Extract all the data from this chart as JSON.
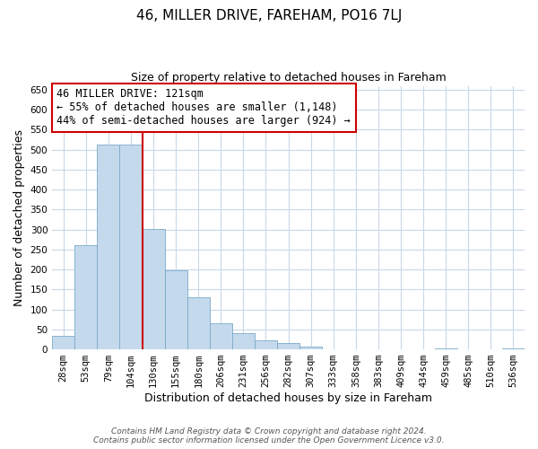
{
  "title": "46, MILLER DRIVE, FAREHAM, PO16 7LJ",
  "subtitle": "Size of property relative to detached houses in Fareham",
  "xlabel": "Distribution of detached houses by size in Fareham",
  "ylabel": "Number of detached properties",
  "bar_labels": [
    "28sqm",
    "53sqm",
    "79sqm",
    "104sqm",
    "130sqm",
    "155sqm",
    "180sqm",
    "206sqm",
    "231sqm",
    "256sqm",
    "282sqm",
    "307sqm",
    "333sqm",
    "358sqm",
    "383sqm",
    "409sqm",
    "434sqm",
    "459sqm",
    "485sqm",
    "510sqm",
    "536sqm"
  ],
  "bar_values": [
    33,
    260,
    513,
    513,
    302,
    197,
    130,
    65,
    40,
    23,
    15,
    7,
    0,
    0,
    0,
    0,
    0,
    2,
    0,
    0,
    2
  ],
  "bar_color": "#c5d9ed",
  "bar_edge_color": "#7aaac8",
  "vline_index": 4,
  "vline_color": "#cc0000",
  "annotation_line1": "46 MILLER DRIVE: 121sqm",
  "annotation_line2": "← 55% of detached houses are smaller (1,148)",
  "annotation_line3": "44% of semi-detached houses are larger (924) →",
  "annotation_box_edge_color": "#cc0000",
  "ylim": [
    0,
    660
  ],
  "yticks": [
    0,
    50,
    100,
    150,
    200,
    250,
    300,
    350,
    400,
    450,
    500,
    550,
    600,
    650
  ],
  "footer_line1": "Contains HM Land Registry data © Crown copyright and database right 2024.",
  "footer_line2": "Contains public sector information licensed under the Open Government Licence v3.0.",
  "background_color": "#ffffff",
  "grid_color": "#c8d8e8",
  "title_fontsize": 11,
  "subtitle_fontsize": 9,
  "axis_label_fontsize": 9,
  "tick_fontsize": 7.5,
  "annotation_fontsize": 8.5,
  "footer_fontsize": 6.5
}
